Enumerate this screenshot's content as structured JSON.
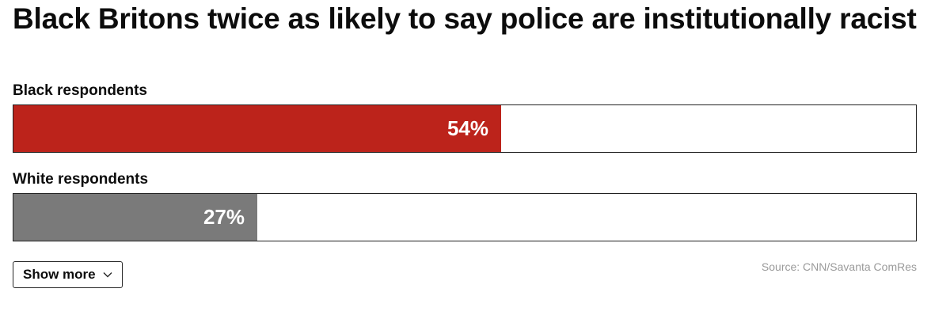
{
  "chart_data": {
    "type": "bar",
    "orientation": "horizontal",
    "title": "Black Britons twice as likely to say police are institutionally racist",
    "categories": [
      "Black respondents",
      "White respondents"
    ],
    "values": [
      54,
      27
    ],
    "value_labels": [
      "54%",
      "27%"
    ],
    "unit": "%",
    "xlim": [
      0,
      100
    ],
    "colors": [
      "#bc231b",
      "#7a7a7a"
    ],
    "grid": false,
    "legend": "none"
  },
  "controls": {
    "show_more_label": "Show more",
    "chevron_icon": "chevron-down-icon"
  },
  "source": "Source: CNN/Savanta ComRes"
}
